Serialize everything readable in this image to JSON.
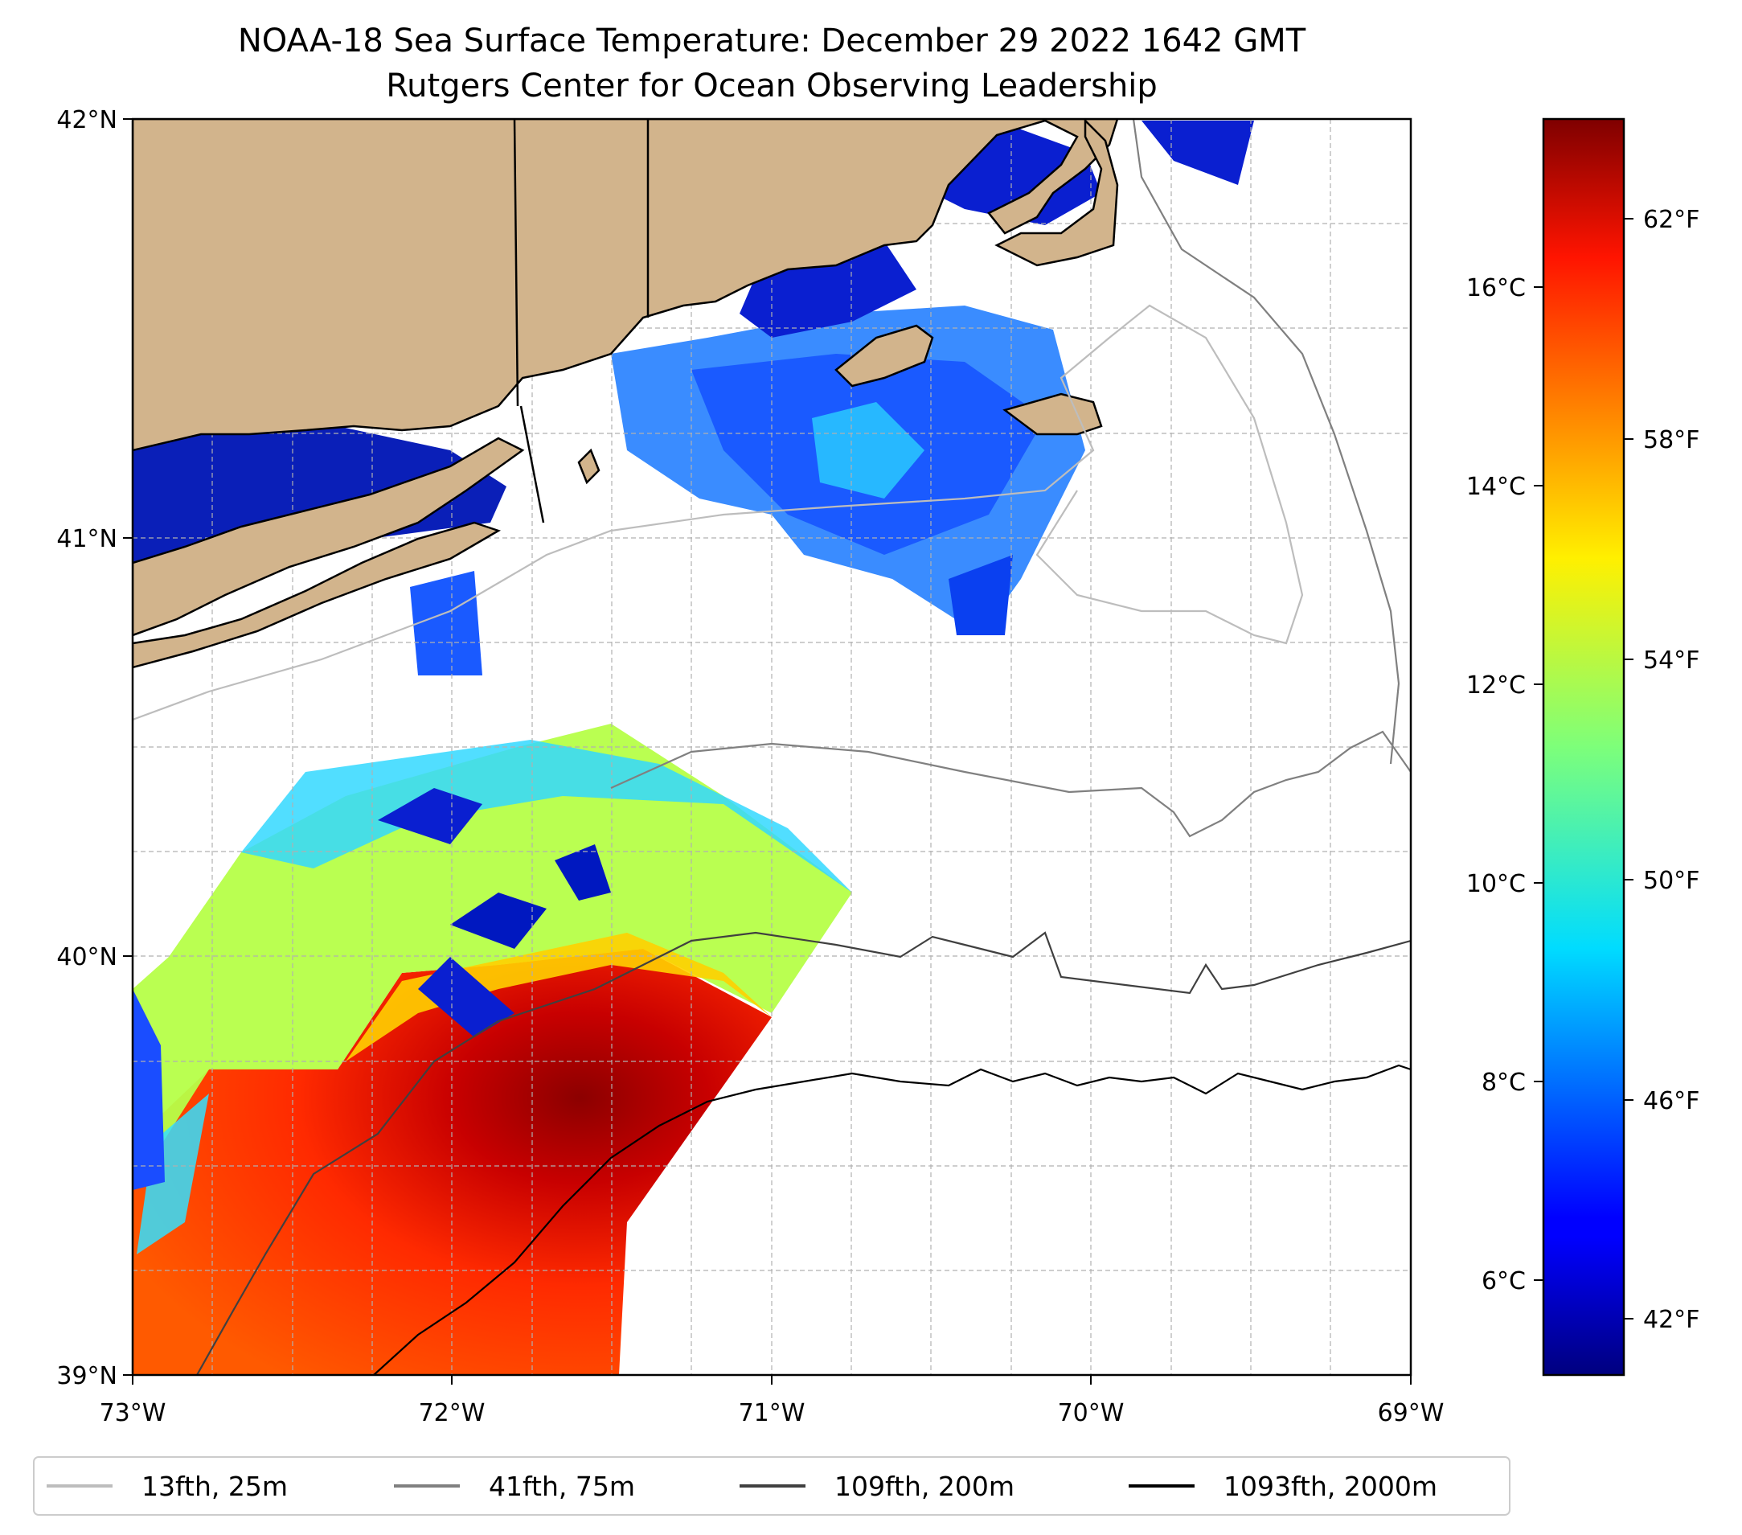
{
  "title": "NOAA-18 Sea Surface Temperature: December 29 2022 1642 GMT",
  "subtitle": "Rutgers Center for Ocean Observing Leadership",
  "colors": {
    "land": "#d2b48c",
    "coast": "#000000",
    "grid": "#b0b0b0",
    "iso25": "#bdbdbd",
    "iso75": "#808080",
    "iso200": "#404040",
    "iso2000": "#000000"
  },
  "map": {
    "lon_range": [
      -73,
      -69
    ],
    "lat_range": [
      39,
      42
    ],
    "x_ticks": [
      {
        "lon": -73,
        "label": "73°W"
      },
      {
        "lon": -72,
        "label": "72°W"
      },
      {
        "lon": -71,
        "label": "71°W"
      },
      {
        "lon": -70,
        "label": "70°W"
      },
      {
        "lon": -69,
        "label": "69°W"
      }
    ],
    "y_ticks": [
      {
        "lat": 39,
        "label": "39°N"
      },
      {
        "lat": 40,
        "label": "40°N"
      },
      {
        "lat": 41,
        "label": "41°N"
      },
      {
        "lat": 42,
        "label": "42°N"
      }
    ],
    "gridlines": "dashed every 0.25°"
  },
  "colorbar": {
    "colormap": "jet",
    "range_f": [
      40.9,
      64.2
    ],
    "celsius_ticks": [
      {
        "value": 6,
        "label": "6°C"
      },
      {
        "value": 8,
        "label": "8°C"
      },
      {
        "value": 10,
        "label": "10°C"
      },
      {
        "value": 12,
        "label": "12°C"
      },
      {
        "value": 14,
        "label": "14°C"
      },
      {
        "value": 16,
        "label": "16°C"
      }
    ],
    "fahrenheit_ticks": [
      {
        "value": 42,
        "label": "42°F"
      },
      {
        "value": 46,
        "label": "46°F"
      },
      {
        "value": 50,
        "label": "50°F"
      },
      {
        "value": 54,
        "label": "54°F"
      },
      {
        "value": 58,
        "label": "58°F"
      },
      {
        "value": 62,
        "label": "62°F"
      }
    ]
  },
  "legend": {
    "placement": "bottom",
    "items": [
      {
        "label": "13fth, 25m",
        "color": "#bdbdbd"
      },
      {
        "label": "41fth, 75m",
        "color": "#808080"
      },
      {
        "label": "109fth, 200m",
        "color": "#404040"
      },
      {
        "label": "1093fth, 2000m",
        "color": "#000000"
      }
    ]
  }
}
